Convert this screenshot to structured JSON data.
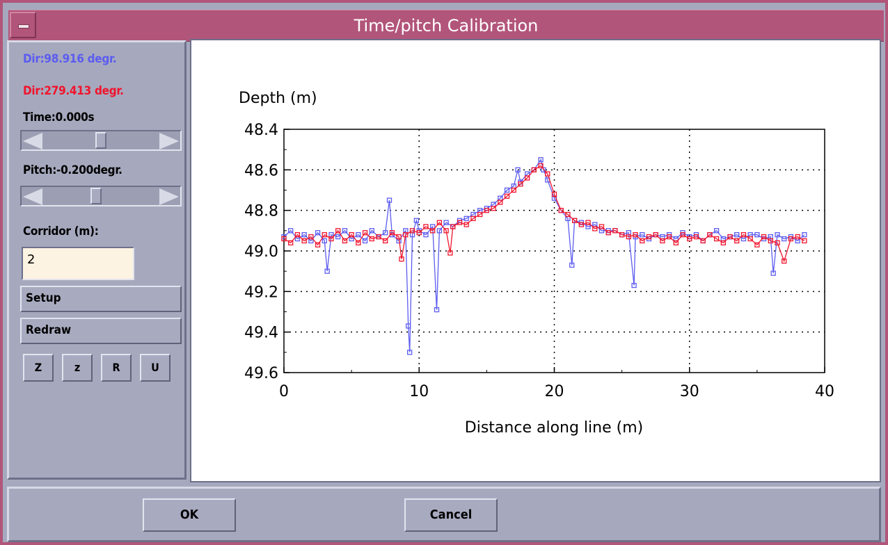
{
  "window": {
    "title": "Time/pitch Calibration"
  },
  "colors": {
    "series_a": "#5c5cf0",
    "series_b": "#f0142c",
    "accent": "#b2557a"
  },
  "left_panel": {
    "dir_a": "Dir:98.916 degr.",
    "dir_b": "Dir:279.413 degr.",
    "time_label": "Time:0.000s",
    "time_slider_position": 0.5,
    "pitch_label": "Pitch:-0.200degr.",
    "pitch_slider_position": 0.45,
    "corridor_label": "Corridor (m):",
    "corridor_value": "2",
    "setup_label": "Setup",
    "redraw_label": "Redraw",
    "tool_buttons": [
      "Z",
      "z",
      "R",
      "U"
    ]
  },
  "footer": {
    "ok_label": "OK",
    "cancel_label": "Cancel"
  },
  "chart_data": {
    "type": "line",
    "title": "",
    "ylabel": "Depth (m)",
    "xlabel": "Distance along line (m)",
    "xlim": [
      0,
      40
    ],
    "ylim": [
      49.6,
      48.4
    ],
    "x_ticks": [
      "0",
      "10",
      "20",
      "30",
      "40"
    ],
    "y_ticks": [
      "48.4",
      "48.6",
      "48.8",
      "49.0",
      "49.2",
      "49.4",
      "49.6"
    ],
    "grid": "dotted",
    "series": [
      {
        "color": "#5c5cf0",
        "marker": "square",
        "x": [
          0,
          0.5,
          1,
          1.5,
          2,
          2.5,
          3,
          3.2,
          3.5,
          4,
          4.5,
          5,
          5.5,
          6,
          6.5,
          7,
          7.5,
          7.8,
          8,
          8.5,
          9,
          9.2,
          9.3,
          9.5,
          9.8,
          10,
          10.5,
          11,
          11.3,
          11.5,
          12,
          12.5,
          13,
          13.5,
          14,
          14.5,
          15,
          15.5,
          16,
          16.5,
          17,
          17.3,
          17.5,
          18,
          18.5,
          19,
          19.2,
          19.5,
          20,
          20.5,
          21,
          21.3,
          21.5,
          22,
          22.5,
          23,
          23.5,
          24,
          24.5,
          25,
          25.5,
          25.9,
          26,
          26.5,
          27,
          27.5,
          28,
          28.5,
          29,
          29.5,
          30,
          30.5,
          31,
          31.5,
          32,
          32.5,
          33,
          33.5,
          34,
          34.5,
          35,
          35.5,
          36,
          36.2,
          36.5,
          37,
          37.5,
          38,
          38.5
        ],
        "y": [
          48.93,
          48.9,
          48.94,
          48.92,
          48.95,
          48.91,
          48.95,
          49.1,
          48.92,
          48.93,
          48.9,
          48.94,
          48.92,
          48.95,
          48.9,
          48.93,
          48.91,
          48.75,
          48.92,
          48.95,
          48.9,
          49.37,
          49.5,
          48.92,
          48.85,
          48.9,
          48.92,
          48.88,
          49.29,
          48.9,
          48.86,
          48.88,
          48.85,
          48.84,
          48.82,
          48.8,
          48.79,
          48.77,
          48.74,
          48.7,
          48.68,
          48.6,
          48.66,
          48.62,
          48.6,
          48.55,
          48.6,
          48.65,
          48.74,
          48.8,
          48.84,
          49.07,
          48.85,
          48.86,
          48.88,
          48.87,
          48.9,
          48.9,
          48.9,
          48.92,
          48.91,
          49.17,
          48.93,
          48.92,
          48.94,
          48.92,
          48.93,
          48.92,
          48.94,
          48.91,
          48.93,
          48.92,
          48.95,
          48.92,
          48.9,
          48.94,
          48.93,
          48.92,
          48.94,
          48.92,
          48.92,
          48.94,
          48.93,
          49.11,
          48.92,
          48.94,
          48.93,
          48.95,
          48.92
        ]
      },
      {
        "color": "#f0142c",
        "marker": "square",
        "x": [
          0,
          0.5,
          1,
          1.5,
          2,
          2.5,
          3,
          3.5,
          4,
          4.5,
          5,
          5.5,
          6,
          6.5,
          7,
          7.5,
          8,
          8.5,
          8.7,
          9,
          9.5,
          10,
          10.5,
          11,
          11.5,
          12,
          12.3,
          12.5,
          13,
          13.5,
          14,
          14.5,
          15,
          15.5,
          16,
          16.5,
          17,
          17.5,
          18,
          18.5,
          19,
          19.5,
          20,
          20.5,
          21,
          21.5,
          22,
          22.5,
          23,
          23.5,
          24,
          24.5,
          25,
          25.5,
          26,
          26.5,
          27,
          27.5,
          28,
          28.5,
          29,
          29.5,
          30,
          30.5,
          31,
          31.5,
          32,
          32.5,
          33,
          33.5,
          34,
          34.5,
          35,
          35.5,
          36,
          36.5,
          37,
          37.5,
          38,
          38.5
        ],
        "y": [
          48.94,
          48.96,
          48.92,
          48.95,
          48.93,
          48.97,
          48.92,
          48.94,
          48.9,
          48.95,
          48.92,
          48.96,
          48.91,
          48.94,
          48.93,
          48.95,
          48.91,
          48.93,
          49.04,
          48.92,
          48.9,
          48.91,
          48.88,
          48.9,
          48.86,
          48.9,
          49.01,
          48.88,
          48.86,
          48.87,
          48.84,
          48.82,
          48.8,
          48.79,
          48.76,
          48.73,
          48.7,
          48.67,
          48.64,
          48.6,
          48.58,
          48.62,
          48.72,
          48.8,
          48.82,
          48.85,
          48.87,
          48.86,
          48.89,
          48.88,
          48.91,
          48.9,
          48.92,
          48.93,
          48.92,
          48.95,
          48.93,
          48.92,
          48.95,
          48.93,
          48.96,
          48.92,
          48.94,
          48.93,
          48.95,
          48.92,
          48.94,
          48.96,
          48.93,
          48.95,
          48.92,
          48.94,
          48.97,
          48.93,
          48.95,
          48.96,
          49.05,
          48.94,
          48.93,
          48.95
        ]
      }
    ]
  }
}
